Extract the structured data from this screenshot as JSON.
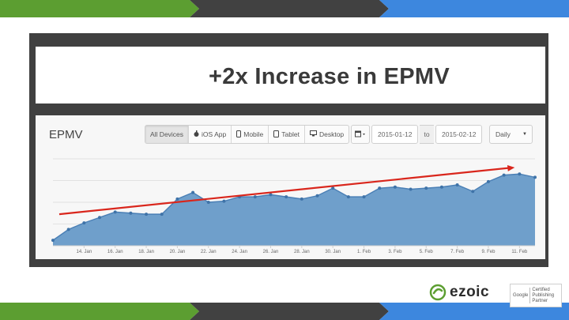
{
  "slide": {
    "title": "+2x Increase in EPMV",
    "colors": {
      "green": "#5c9e31",
      "dark": "#414141",
      "blue": "#3d87de",
      "area": "#6f9fcb",
      "trend": "#d9261c"
    }
  },
  "dashboard": {
    "metric_label": "EPMV",
    "devices": [
      {
        "label": "All Devices",
        "icon": "",
        "active": true
      },
      {
        "label": "iOS App",
        "icon": "apple-icon",
        "active": false
      },
      {
        "label": "Mobile",
        "icon": "mobile-icon",
        "active": false
      },
      {
        "label": "Tablet",
        "icon": "tablet-icon",
        "active": false
      },
      {
        "label": "Desktop",
        "icon": "desktop-icon",
        "active": false
      }
    ],
    "date_from": "2015-01-12",
    "date_to_label": "to",
    "date_to": "2015-02-12",
    "interval": "Daily"
  },
  "chart_data": {
    "type": "area",
    "x_tick_labels": [
      "14. Jan",
      "16. Jan",
      "18. Jan",
      "20. Jan",
      "22. Jan",
      "24. Jan",
      "26. Jan",
      "28. Jan",
      "30. Jan",
      "1. Feb",
      "3. Feb",
      "5. Feb",
      "7. Feb",
      "9. Feb",
      "11. Feb"
    ],
    "x": [
      "12. Jan",
      "13. Jan",
      "14. Jan",
      "15. Jan",
      "16. Jan",
      "17. Jan",
      "18. Jan",
      "19. Jan",
      "20. Jan",
      "21. Jan",
      "22. Jan",
      "23. Jan",
      "24. Jan",
      "25. Jan",
      "26. Jan",
      "27. Jan",
      "28. Jan",
      "29. Jan",
      "30. Jan",
      "31. Jan",
      "1. Feb",
      "2. Feb",
      "3. Feb",
      "4. Feb",
      "5. Feb",
      "6. Feb",
      "7. Feb",
      "8. Feb",
      "9. Feb",
      "10. Feb",
      "11. Feb",
      "12. Feb"
    ],
    "values": [
      0.5,
      1.5,
      2.1,
      2.6,
      3.1,
      3.0,
      2.9,
      2.9,
      4.3,
      4.9,
      4.0,
      4.1,
      4.5,
      4.5,
      4.7,
      4.5,
      4.3,
      4.6,
      5.3,
      4.5,
      4.5,
      5.3,
      5.4,
      5.2,
      5.3,
      5.4,
      5.6,
      5.0,
      5.9,
      6.5,
      6.6,
      6.3
    ],
    "ylim": [
      0,
      8
    ],
    "trend_line": {
      "start": 2.9,
      "end": 7.2
    },
    "grid": true
  },
  "footer": {
    "brand": "ezoic",
    "badge_google": "Google",
    "badge_lines": [
      "Certified",
      "Publishing",
      "Partner"
    ]
  }
}
